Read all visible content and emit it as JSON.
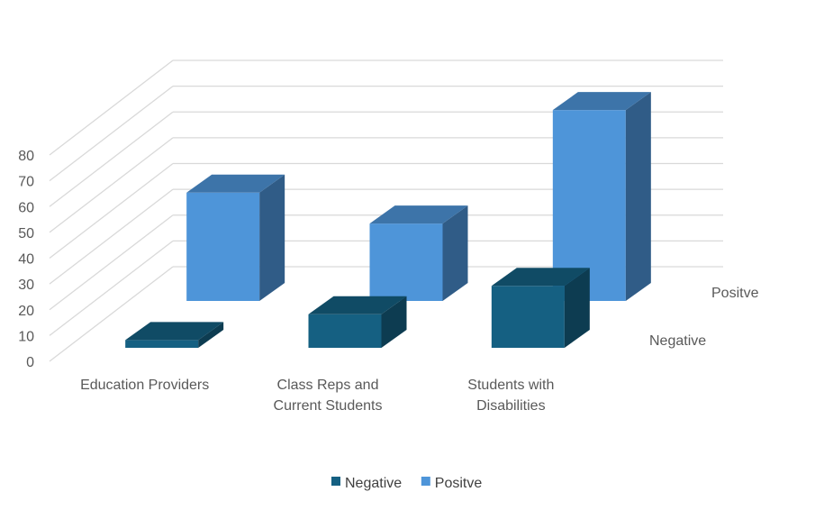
{
  "chart_data": {
    "type": "bar",
    "title": "",
    "xlabel": "",
    "ylabel": "",
    "categories": [
      "Education Providers",
      "Class Reps and Current Students",
      "Students with Disabilities"
    ],
    "category_lines": [
      [
        "Education Providers"
      ],
      [
        "Class Reps and",
        "Current Students"
      ],
      [
        "Students with",
        "Disabilities"
      ]
    ],
    "series": [
      {
        "name": "Negative",
        "values": [
          3,
          13,
          24
        ],
        "color": "#156082"
      },
      {
        "name": "Positve",
        "values": [
          42,
          30,
          74
        ],
        "color": "#4E95D9"
      }
    ],
    "ylim": [
      0,
      80
    ],
    "yticks": [
      0,
      10,
      20,
      30,
      40,
      50,
      60,
      70,
      80
    ],
    "grid": true,
    "legend_position": "bottom",
    "style": "3d-clustered-column"
  }
}
